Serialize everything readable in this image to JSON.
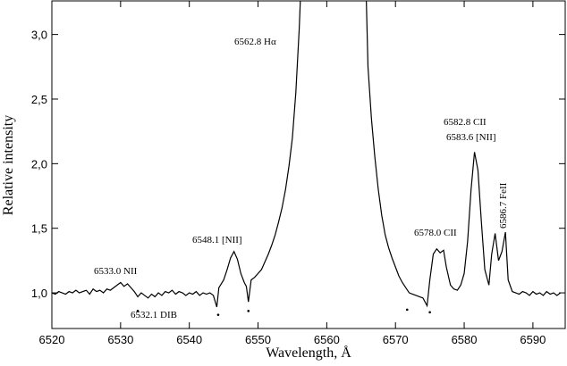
{
  "chart_data": {
    "type": "line",
    "x_label": "Wavelength, Å",
    "y_label": "Relative intensity",
    "xlim": [
      6520,
      6594.7
    ],
    "ylim": [
      0.724,
      3.26
    ],
    "xticks": [
      6520,
      6530,
      6540,
      6550,
      6560,
      6570,
      6580,
      6590
    ],
    "yticks": [
      {
        "value": 1.0,
        "label": "1,0"
      },
      {
        "value": 1.5,
        "label": "1,5"
      },
      {
        "value": 2.0,
        "label": "2,0"
      },
      {
        "value": 2.5,
        "label": "2,5"
      },
      {
        "value": 3.0,
        "label": "3,0"
      }
    ],
    "color": "#000000",
    "x": [
      6520,
      6520.5,
      6521,
      6521.5,
      6522,
      6522.5,
      6523,
      6523.5,
      6524,
      6524.5,
      6525,
      6525.5,
      6526,
      6526.5,
      6527,
      6527.5,
      6528,
      6528.5,
      6529,
      6529.5,
      6530,
      6530.5,
      6531,
      6531.5,
      6532,
      6532.5,
      6533,
      6533.5,
      6534,
      6534.5,
      6535,
      6535.5,
      6536,
      6536.5,
      6537,
      6537.5,
      6538,
      6538.5,
      6539,
      6539.5,
      6540,
      6540.5,
      6541,
      6541.5,
      6542,
      6542.5,
      6543,
      6543.5,
      6544,
      6544.3,
      6545,
      6545.5,
      6546,
      6546.5,
      6547,
      6547.5,
      6548,
      6548.3,
      6548.6,
      6549,
      6549.5,
      6550,
      6550.5,
      6551,
      6551.5,
      6552,
      6552.5,
      6553,
      6553.5,
      6554,
      6554.5,
      6555,
      6555.5,
      6556,
      6556.4,
      6565.6,
      6566,
      6566.5,
      6567,
      6567.5,
      6568,
      6568.5,
      6569,
      6569.5,
      6570,
      6570.5,
      6571,
      6571.5,
      6572,
      6572.5,
      6573,
      6573.5,
      6574,
      6574.6,
      6575,
      6575.5,
      6576,
      6576.5,
      6577,
      6577.4,
      6578,
      6578.5,
      6579,
      6579.5,
      6580,
      6580.5,
      6581,
      6581.5,
      6582,
      6582.5,
      6583,
      6583.6,
      6584,
      6584.5,
      6585,
      6585.5,
      6586,
      6586.4,
      6587,
      6587.5,
      6588,
      6588.5,
      6589,
      6589.5,
      6590,
      6590.5,
      6591,
      6591.5,
      6592,
      6592.5,
      6593,
      6593.5,
      6594
    ],
    "values": [
      1.0,
      0.99,
      1.01,
      1.0,
      0.99,
      1.01,
      1.0,
      1.02,
      1.0,
      1.01,
      1.02,
      0.99,
      1.03,
      1.01,
      1.02,
      1.0,
      1.03,
      1.02,
      1.04,
      1.06,
      1.08,
      1.05,
      1.07,
      1.04,
      1.01,
      0.97,
      1.0,
      0.98,
      0.96,
      0.99,
      0.97,
      1.0,
      0.98,
      1.01,
      1.0,
      1.02,
      0.99,
      1.01,
      1.0,
      0.98,
      1.0,
      0.99,
      1.01,
      0.98,
      1.0,
      0.99,
      1.0,
      0.98,
      0.89,
      1.04,
      1.1,
      1.18,
      1.27,
      1.32,
      1.26,
      1.15,
      1.08,
      1.05,
      0.93,
      1.1,
      1.12,
      1.15,
      1.18,
      1.24,
      1.3,
      1.37,
      1.45,
      1.55,
      1.66,
      1.8,
      1.98,
      2.2,
      2.55,
      3.05,
      3.6,
      3.6,
      2.75,
      2.35,
      2.05,
      1.8,
      1.6,
      1.45,
      1.35,
      1.27,
      1.2,
      1.13,
      1.08,
      1.04,
      1.0,
      0.99,
      0.98,
      0.97,
      0.96,
      0.9,
      1.1,
      1.3,
      1.34,
      1.31,
      1.33,
      1.2,
      1.06,
      1.03,
      1.02,
      1.06,
      1.15,
      1.4,
      1.8,
      2.09,
      1.95,
      1.55,
      1.18,
      1.06,
      1.3,
      1.46,
      1.25,
      1.32,
      1.47,
      1.1,
      1.01,
      1.0,
      0.99,
      1.01,
      1.0,
      0.98,
      1.01,
      0.99,
      1.0,
      0.98,
      1.01,
      0.99,
      1.0,
      0.98,
      1.0
    ],
    "markers": {
      "x": [
        6532.5,
        6544.2,
        6548.6,
        6571.7,
        6575.0
      ],
      "y": [
        0.86,
        0.83,
        0.86,
        0.87,
        0.85
      ]
    },
    "annotations": [
      "6562.8 Hα",
      "6548.1 [NII]",
      "6533.0 NII",
      "6532.1 DIB",
      "6578.0 CII",
      "6582.8 CII",
      "6583.6 [NII]",
      "6586.7 FeII"
    ]
  }
}
